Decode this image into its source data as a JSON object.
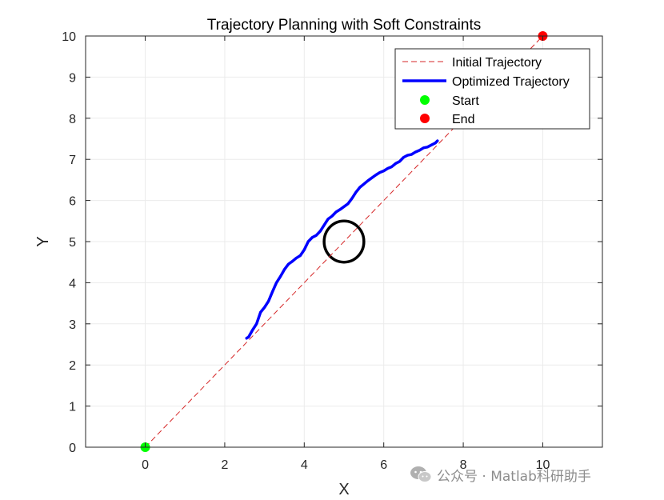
{
  "chart_data": {
    "type": "line",
    "title": "Trajectory Planning with Soft Constraints",
    "xlabel": "X",
    "ylabel": "Y",
    "xlim": [
      -1.5,
      11.5
    ],
    "ylim": [
      0,
      10
    ],
    "xticks": [
      0,
      2,
      4,
      6,
      8,
      10
    ],
    "yticks": [
      0,
      1,
      2,
      3,
      4,
      5,
      6,
      7,
      8,
      9,
      10
    ],
    "grid": true,
    "legend_position": "top-right",
    "series": [
      {
        "name": "Initial Trajectory",
        "style": "dashed",
        "color": "#d62728",
        "x": [
          0,
          10
        ],
        "y": [
          0,
          10
        ]
      },
      {
        "name": "Optimized Trajectory",
        "style": "solid",
        "color": "#0000ff",
        "x": [
          2.55,
          2.6,
          2.7,
          2.8,
          2.9,
          3.0,
          3.1,
          3.2,
          3.3,
          3.4,
          3.5,
          3.6,
          3.7,
          3.8,
          3.9,
          4.0,
          4.1,
          4.2,
          4.3,
          4.4,
          4.5,
          4.6,
          4.7,
          4.8,
          4.9,
          5.0,
          5.1,
          5.2,
          5.3,
          5.4,
          5.5,
          5.6,
          5.7,
          5.8,
          5.9,
          6.0,
          6.1,
          6.2,
          6.3,
          6.4,
          6.5,
          6.6,
          6.7,
          6.8,
          6.9,
          7.0,
          7.1,
          7.2,
          7.3,
          7.35
        ],
        "y": [
          2.65,
          2.68,
          2.85,
          3.0,
          3.28,
          3.4,
          3.55,
          3.78,
          4.0,
          4.15,
          4.32,
          4.45,
          4.52,
          4.6,
          4.66,
          4.8,
          5.0,
          5.1,
          5.15,
          5.25,
          5.4,
          5.55,
          5.62,
          5.72,
          5.78,
          5.85,
          5.92,
          6.05,
          6.2,
          6.32,
          6.4,
          6.48,
          6.55,
          6.62,
          6.68,
          6.72,
          6.78,
          6.82,
          6.9,
          6.95,
          7.05,
          7.1,
          7.12,
          7.18,
          7.22,
          7.28,
          7.3,
          7.35,
          7.4,
          7.45
        ]
      },
      {
        "name": "Start",
        "style": "marker",
        "color": "#00ff00",
        "x": [
          0
        ],
        "y": [
          0
        ]
      },
      {
        "name": "End",
        "style": "marker",
        "color": "#ff0000",
        "x": [
          10
        ],
        "y": [
          10
        ]
      }
    ],
    "annotations": [
      {
        "type": "circle",
        "center": [
          5,
          5
        ],
        "radius": 0.5,
        "color": "#000000"
      }
    ]
  },
  "watermark": {
    "text": "公众号 · Matlab科研助手",
    "icon": "wechat-icon"
  }
}
